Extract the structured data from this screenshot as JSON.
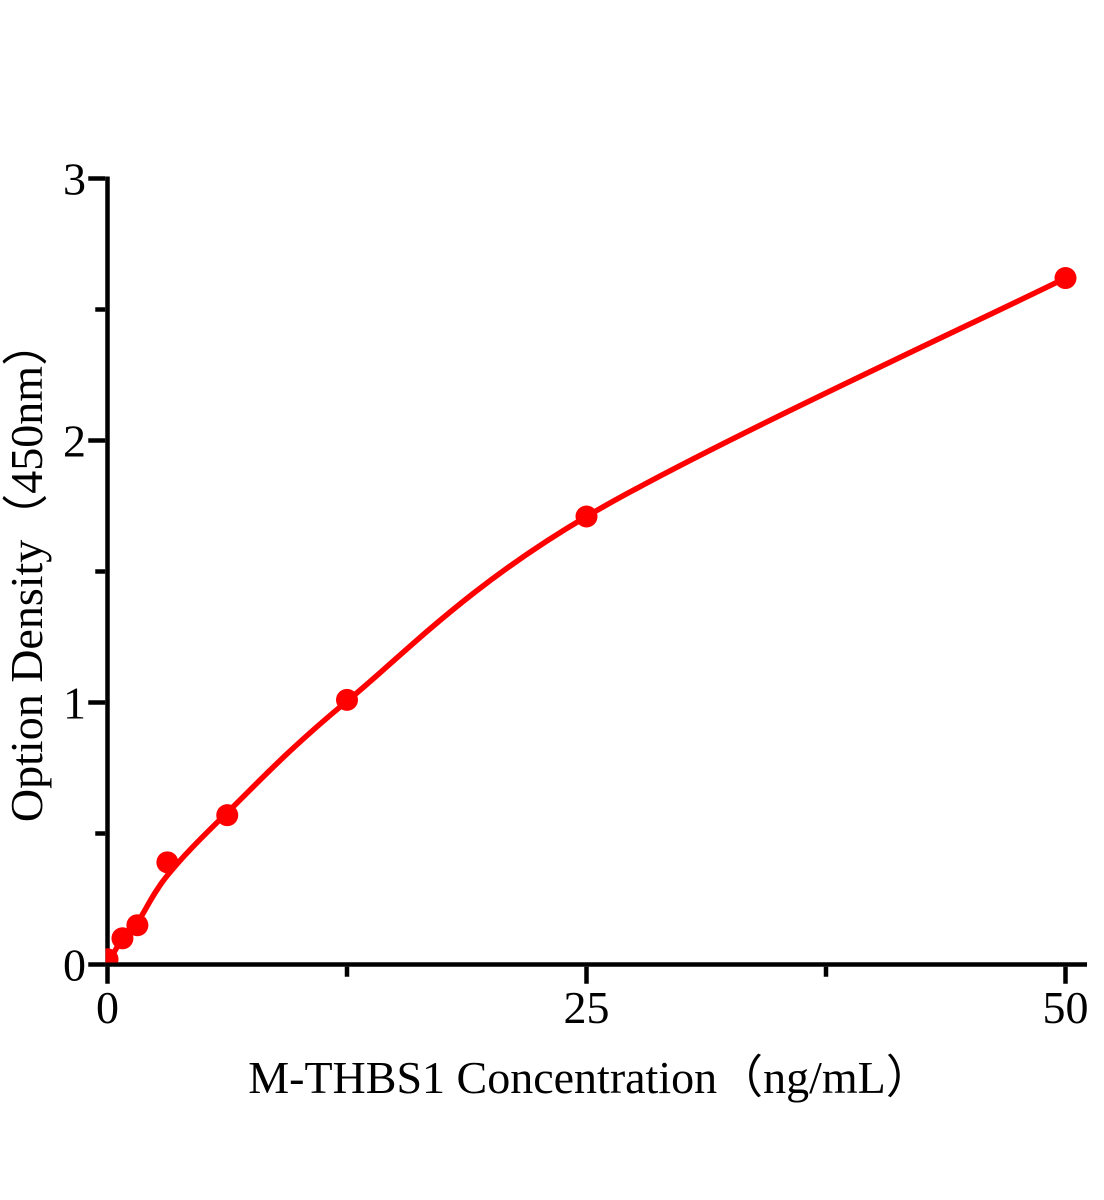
{
  "chart_data": {
    "type": "scatter",
    "subtype": "ELISA standard curve (smooth fit line with circle markers)",
    "title": "",
    "xlabel": "M-THBS1 Concentration（ng/mL）",
    "ylabel": "Option Density（450nm）",
    "points": [
      {
        "x": 0,
        "y": 0.02
      },
      {
        "x": 0.78,
        "y": 0.1
      },
      {
        "x": 1.56,
        "y": 0.15
      },
      {
        "x": 3.125,
        "y": 0.39
      },
      {
        "x": 6.25,
        "y": 0.57
      },
      {
        "x": 12.5,
        "y": 1.01
      },
      {
        "x": 25,
        "y": 1.71
      },
      {
        "x": 50,
        "y": 2.62
      }
    ],
    "fit_curve_y": [
      0,
      0.1,
      0.16,
      0.34,
      0.58,
      1.005,
      1.71,
      2.62
    ],
    "xlim": [
      0,
      51.1
    ],
    "ylim": [
      0,
      3
    ],
    "x_ticks": {
      "major": [
        0,
        25,
        50
      ],
      "minor": [
        12.5,
        37.5
      ],
      "labels": [
        "0",
        "25",
        "50"
      ]
    },
    "y_ticks": {
      "major": [
        0,
        1,
        2,
        3
      ],
      "minor": [
        0.5,
        1.5,
        2.5
      ],
      "labels": [
        "0",
        "1",
        "2",
        "3"
      ]
    },
    "grid": false,
    "legend": false,
    "colors": {
      "series": "#FE0000",
      "axis": "#000000",
      "text": "#000000",
      "background": "#FFFFFF"
    }
  }
}
